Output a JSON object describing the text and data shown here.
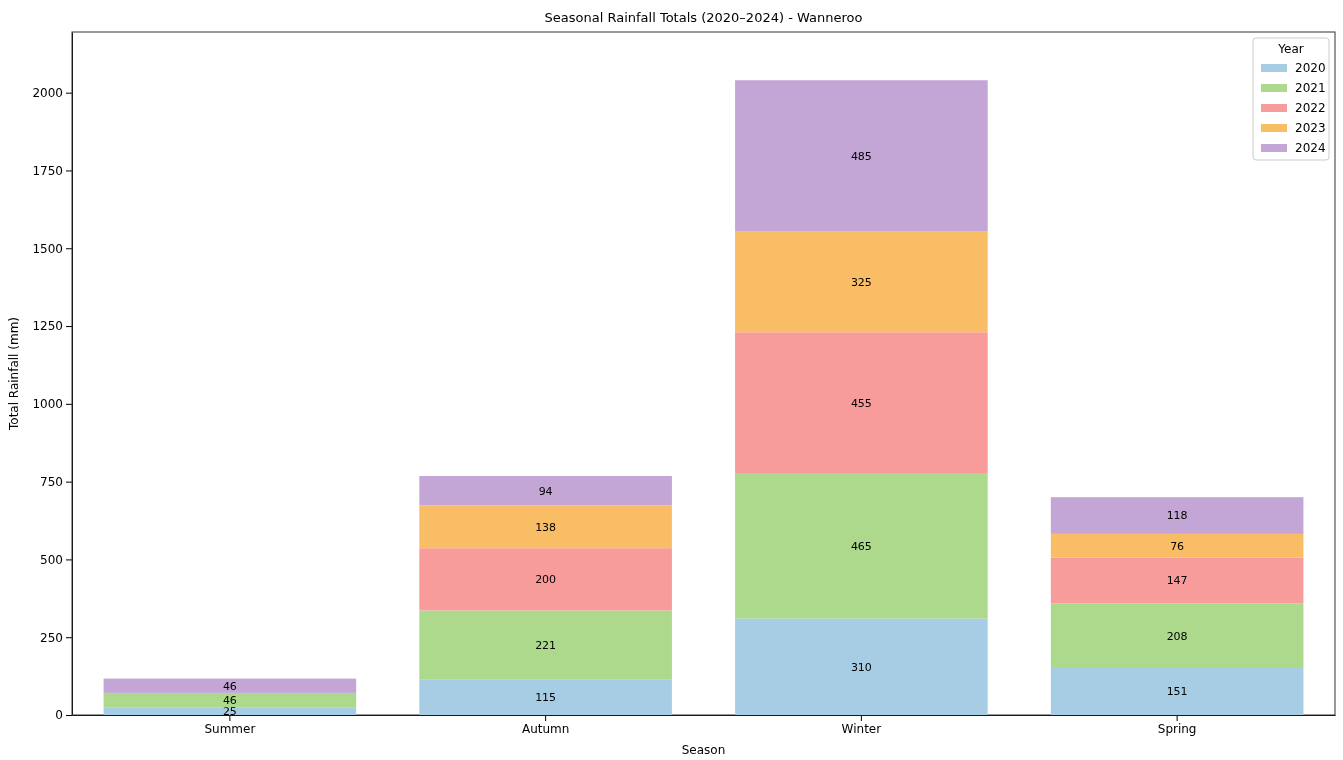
{
  "chart_data": {
    "type": "bar",
    "title": "Seasonal Rainfall Totals (2020–2024) - Wanneroo",
    "xlabel": "Season",
    "ylabel": "Total Rainfall (mm)",
    "legend_title": "Year",
    "categories": [
      "Summer",
      "Autumn",
      "Winter",
      "Spring"
    ],
    "series": [
      {
        "name": "2020",
        "color": "#a7cde5",
        "values": [
          25,
          115,
          310,
          151
        ],
        "value_labels": [
          "25",
          "115",
          "310",
          "151"
        ]
      },
      {
        "name": "2021",
        "color": "#acd98c",
        "values": [
          46,
          221,
          465,
          208
        ],
        "value_labels": [
          "46",
          "221",
          "465",
          "208"
        ]
      },
      {
        "name": "2022",
        "color": "#f79c9b",
        "values": [
          0,
          200,
          455,
          147
        ],
        "value_labels": [
          null,
          "200",
          "455",
          "147"
        ]
      },
      {
        "name": "2023",
        "color": "#f9bd66",
        "values": [
          0,
          138,
          325,
          76
        ],
        "value_labels": [
          null,
          "138",
          "325",
          "76"
        ]
      },
      {
        "name": "2024",
        "color": "#c3a6d6",
        "values": [
          46,
          94,
          485,
          118
        ],
        "value_labels": [
          "46",
          "94",
          "485",
          "118"
        ]
      }
    ],
    "stacked": true,
    "legend": "top right",
    "grid": false,
    "ylim": [
      0,
      2195
    ],
    "yticks": [
      0,
      250,
      500,
      750,
      1000,
      1250,
      1500,
      1750,
      2000
    ]
  }
}
